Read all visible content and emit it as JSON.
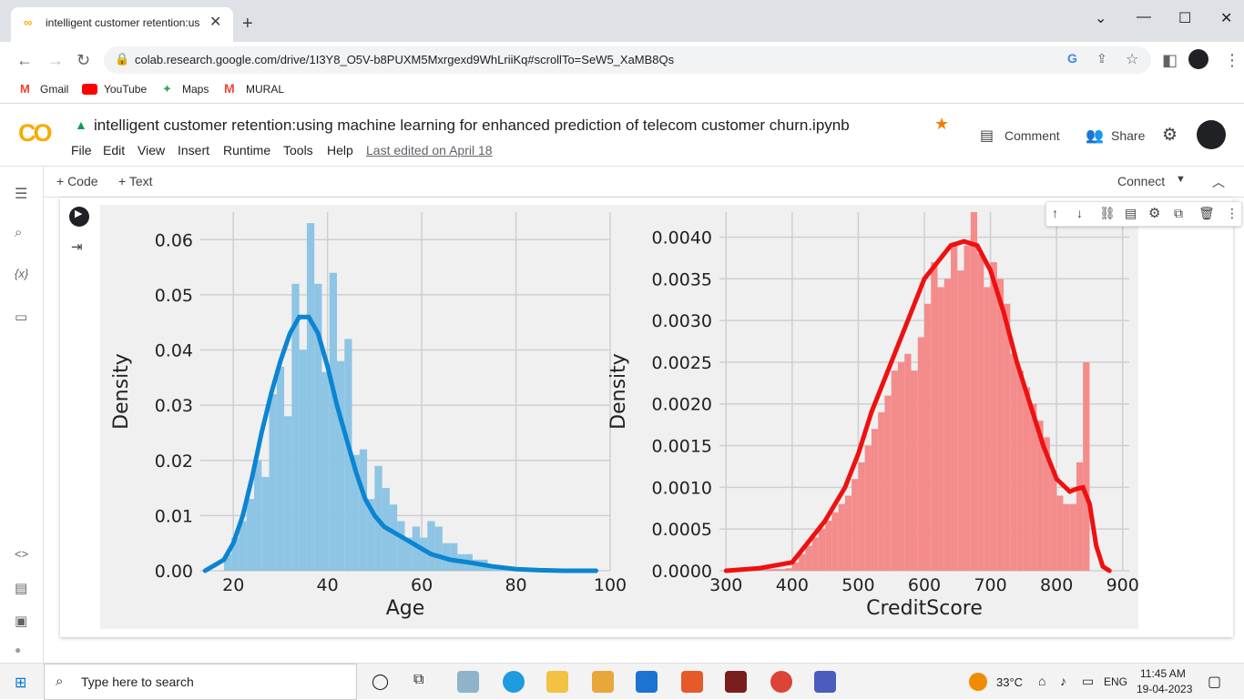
{
  "browser": {
    "tab_title": "intelligent customer retention:us",
    "url": "colab.research.google.com/drive/1I3Y8_O5V-b8PUXM5Mxrgexd9WhLriiKq#scrollTo=SeW5_XaMB8Qs",
    "bookmarks": [
      "Gmail",
      "YouTube",
      "Maps",
      "MURAL"
    ]
  },
  "colab": {
    "logo": "CO",
    "title": "intelligent customer retention:using machine learning for enhanced prediction  of telecom customer churn.ipynb",
    "menu": [
      "File",
      "Edit",
      "View",
      "Insert",
      "Runtime",
      "Tools",
      "Help"
    ],
    "last_edited": "Last edited on April 18",
    "comment_label": "Comment",
    "share_label": "Share",
    "add_code": "+ Code",
    "add_text": "+ Text",
    "connect_label": "Connect"
  },
  "colors": {
    "age_hist": "#8ec5e4",
    "age_kde": "#0b85d1",
    "credit_hist": "#f48c8c",
    "credit_kde": "#ee1111",
    "plot_bg": "#f0f0f0"
  },
  "chart_data": [
    {
      "type": "bar",
      "xlabel": "Age",
      "ylabel": "Density",
      "xlim": [
        13,
        100
      ],
      "ylim": [
        0,
        0.065
      ],
      "xticks": [
        20,
        40,
        60,
        80,
        100
      ],
      "yticks": [
        0.0,
        0.01,
        0.02,
        0.03,
        0.04,
        0.05,
        0.06
      ],
      "ytick_labels": [
        "0.00",
        "0.01",
        "0.02",
        "0.03",
        "0.04",
        "0.05",
        "0.06"
      ],
      "grid": true,
      "hist_bins": [
        18,
        19.6,
        21.2,
        22.8,
        24.4,
        26,
        27.6,
        29.2,
        30.8,
        32.4,
        34,
        35.6,
        37.2,
        38.8,
        40.4,
        42,
        43.6,
        45.2,
        46.8,
        48.4,
        50,
        51.6,
        53.2,
        54.8,
        56.4,
        58,
        59.6,
        61.2,
        62.8,
        64.4,
        66,
        67.6,
        69.2,
        70.8,
        72.4,
        74,
        75.6,
        77.2,
        78.8,
        80.4
      ],
      "hist_values": [
        0.003,
        0.006,
        0.009,
        0.013,
        0.02,
        0.017,
        0.032,
        0.037,
        0.028,
        0.052,
        0.04,
        0.063,
        0.052,
        0.036,
        0.054,
        0.038,
        0.042,
        0.021,
        0.022,
        0.013,
        0.019,
        0.015,
        0.012,
        0.009,
        0.006,
        0.008,
        0.006,
        0.009,
        0.008,
        0.005,
        0.005,
        0.003,
        0.003,
        0.002,
        0.002,
        0.001,
        0.001,
        0.0008,
        0.0005,
        0.0003
      ],
      "kde_x": [
        14,
        18,
        20,
        22,
        24,
        26,
        28,
        30,
        32,
        34,
        36,
        38,
        40,
        42,
        44,
        46,
        48,
        50,
        52,
        54,
        56,
        58,
        60,
        62,
        64,
        66,
        70,
        75,
        80,
        85,
        90,
        97
      ],
      "kde_y": [
        0,
        0.002,
        0.005,
        0.01,
        0.017,
        0.025,
        0.032,
        0.038,
        0.043,
        0.046,
        0.046,
        0.043,
        0.037,
        0.03,
        0.024,
        0.018,
        0.013,
        0.01,
        0.008,
        0.007,
        0.006,
        0.005,
        0.004,
        0.003,
        0.0025,
        0.002,
        0.0015,
        0.0008,
        0.0003,
        0.0001,
        0,
        0
      ]
    },
    {
      "type": "bar",
      "xlabel": "CreditScore",
      "ylabel": "Density",
      "xlim": [
        290,
        910
      ],
      "ylim": [
        0,
        0.0043
      ],
      "xticks": [
        300,
        400,
        500,
        600,
        700,
        800,
        900
      ],
      "yticks": [
        0.0,
        0.0005,
        0.001,
        0.0015,
        0.002,
        0.0025,
        0.003,
        0.0035,
        0.004
      ],
      "ytick_labels": [
        "0.0000",
        "0.0005",
        "0.0010",
        "0.0015",
        "0.0020",
        "0.0025",
        "0.0030",
        "0.0035",
        "0.0040"
      ],
      "grid": true,
      "hist_bins": [
        350,
        360,
        370,
        380,
        390,
        400,
        410,
        420,
        430,
        440,
        450,
        460,
        470,
        480,
        490,
        500,
        510,
        520,
        530,
        540,
        550,
        560,
        570,
        580,
        590,
        600,
        610,
        620,
        630,
        640,
        650,
        660,
        670,
        680,
        690,
        700,
        710,
        720,
        730,
        740,
        750,
        760,
        770,
        780,
        790,
        800,
        810,
        820,
        830,
        840
      ],
      "hist_values": [
        2e-05,
        2e-05,
        2e-05,
        2e-05,
        3e-05,
        0.0001,
        0.0002,
        0.0003,
        0.0004,
        0.0005,
        0.0006,
        0.0007,
        0.0008,
        0.0009,
        0.0011,
        0.0013,
        0.0015,
        0.0017,
        0.0019,
        0.0021,
        0.0024,
        0.0025,
        0.0026,
        0.0024,
        0.0028,
        0.0032,
        0.0037,
        0.0034,
        0.0035,
        0.0039,
        0.0036,
        0.0039,
        0.0043,
        0.0038,
        0.0034,
        0.0037,
        0.0035,
        0.0032,
        0.0026,
        0.0024,
        0.0022,
        0.002,
        0.0018,
        0.0016,
        0.0012,
        0.0009,
        0.0008,
        0.0008,
        0.0013,
        0.0025
      ],
      "kde_x": [
        300,
        350,
        400,
        420,
        450,
        480,
        500,
        520,
        550,
        580,
        600,
        620,
        640,
        660,
        680,
        700,
        720,
        740,
        760,
        780,
        800,
        820,
        830,
        840,
        850,
        860,
        870,
        880
      ],
      "kde_y": [
        0,
        3e-05,
        0.0001,
        0.0003,
        0.0006,
        0.001,
        0.0014,
        0.0019,
        0.0025,
        0.0031,
        0.0035,
        0.0037,
        0.0039,
        0.00395,
        0.0039,
        0.0036,
        0.0031,
        0.0025,
        0.002,
        0.0015,
        0.0011,
        0.00095,
        0.00098,
        0.001,
        0.0008,
        0.0003,
        5e-05,
        0
      ]
    }
  ],
  "taskbar": {
    "search_placeholder": "Type here to search",
    "temperature": "33°C",
    "language": "ENG",
    "time": "11:45 AM",
    "date": "19-04-2023"
  }
}
